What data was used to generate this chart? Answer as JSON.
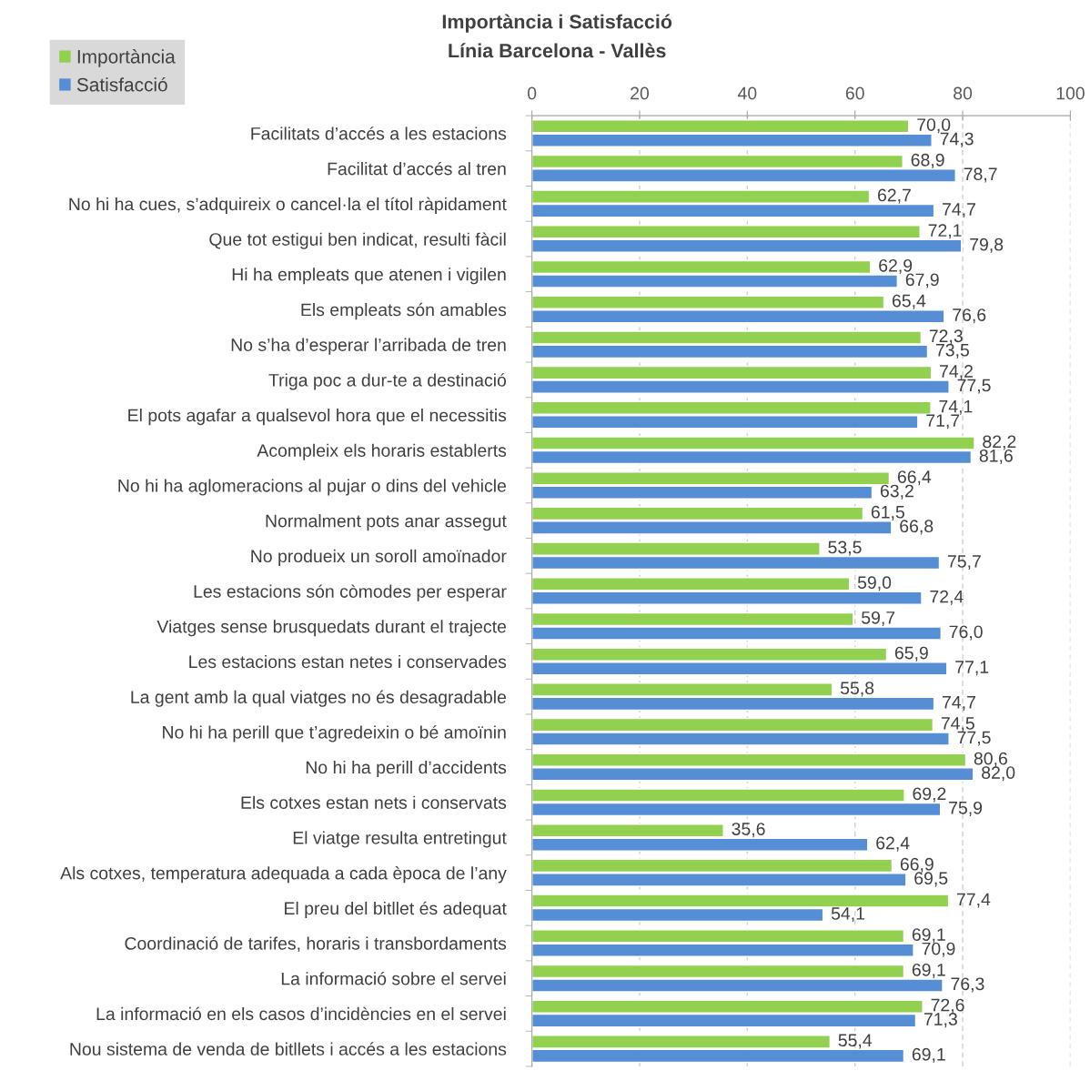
{
  "chart_data": {
    "type": "bar",
    "orientation": "horizontal",
    "title": "Importància i Satisfacció",
    "subtitle": "Línia Barcelona - Vallès",
    "categories": [
      "Facilitats d’accés a les estacions",
      "Facilitat d’accés al tren",
      "No hi ha cues, s’adquireix o cancel·la el títol ràpidament",
      "Que tot estigui ben indicat, resulti fàcil",
      "Hi ha empleats que atenen i vigilen",
      "Els empleats són amables",
      "No s’ha d’esperar l’arribada de tren",
      "Triga poc a dur-te a destinació",
      "El pots agafar a qualsevol hora que el necessitis",
      "Acompleix els horaris establerts",
      "No hi ha aglomeracions al pujar o dins del vehicle",
      "Normalment pots anar assegut",
      "No produeix un soroll amoïnador",
      "Les estacions són còmodes per esperar",
      "Viatges sense brusquedats durant el trajecte",
      "Les estacions estan netes i conservades",
      "La gent amb la qual viatges no és desagradable",
      "No hi ha perill que t’agredeixin o bé amoïnin",
      "No hi ha perill d’accidents",
      "Els cotxes estan nets i conservats",
      "El viatge resulta entretingut",
      "Als cotxes, temperatura adequada a cada època de l’any",
      "El preu del bitllet és adequat",
      "Coordinació de tarifes, horaris i transbordaments",
      "La informació sobre el servei",
      "La informació en els casos d’incidències en el servei",
      "Nou sistema de venda de bitllets i accés a les estacions"
    ],
    "series": [
      {
        "name": "Importància",
        "color": "#92d050",
        "values": [
          70.0,
          68.9,
          62.7,
          72.1,
          62.9,
          65.4,
          72.3,
          74.2,
          74.1,
          82.2,
          66.4,
          61.5,
          53.5,
          59.0,
          59.7,
          65.9,
          55.8,
          74.5,
          80.6,
          69.2,
          35.6,
          66.9,
          77.4,
          69.1,
          69.1,
          72.6,
          55.4
        ],
        "value_labels": [
          "70,0",
          "68,9",
          "62,7",
          "72,1",
          "62,9",
          "65,4",
          "72,3",
          "74,2",
          "74,1",
          "82,2",
          "66,4",
          "61,5",
          "53,5",
          "59,0",
          "59,7",
          "65,9",
          "55,8",
          "74,5",
          "80,6",
          "69,2",
          "35,6",
          "66,9",
          "77,4",
          "69,1",
          "69,1",
          "72,6",
          "55,4"
        ]
      },
      {
        "name": "Satisfacció",
        "color": "#558ed5",
        "values": [
          74.3,
          78.7,
          74.7,
          79.8,
          67.9,
          76.6,
          73.5,
          77.5,
          71.7,
          81.6,
          63.2,
          66.8,
          75.7,
          72.4,
          76.0,
          77.1,
          74.7,
          77.5,
          82.0,
          75.9,
          62.4,
          69.5,
          54.1,
          70.9,
          76.3,
          71.3,
          69.1
        ],
        "value_labels": [
          "74,3",
          "78,7",
          "74,7",
          "79,8",
          "67,9",
          "76,6",
          "73,5",
          "77,5",
          "71,7",
          "81,6",
          "63,2",
          "66,8",
          "75,7",
          "72,4",
          "76,0",
          "77,1",
          "74,7",
          "77,5",
          "82,0",
          "75,9",
          "62,4",
          "69,5",
          "54,1",
          "70,9",
          "76,3",
          "71,3",
          "69,1"
        ]
      }
    ],
    "xlim": [
      0,
      100
    ],
    "xticks": [
      0,
      20,
      40,
      60,
      80,
      100
    ],
    "grid": "x",
    "legend": "top left"
  }
}
